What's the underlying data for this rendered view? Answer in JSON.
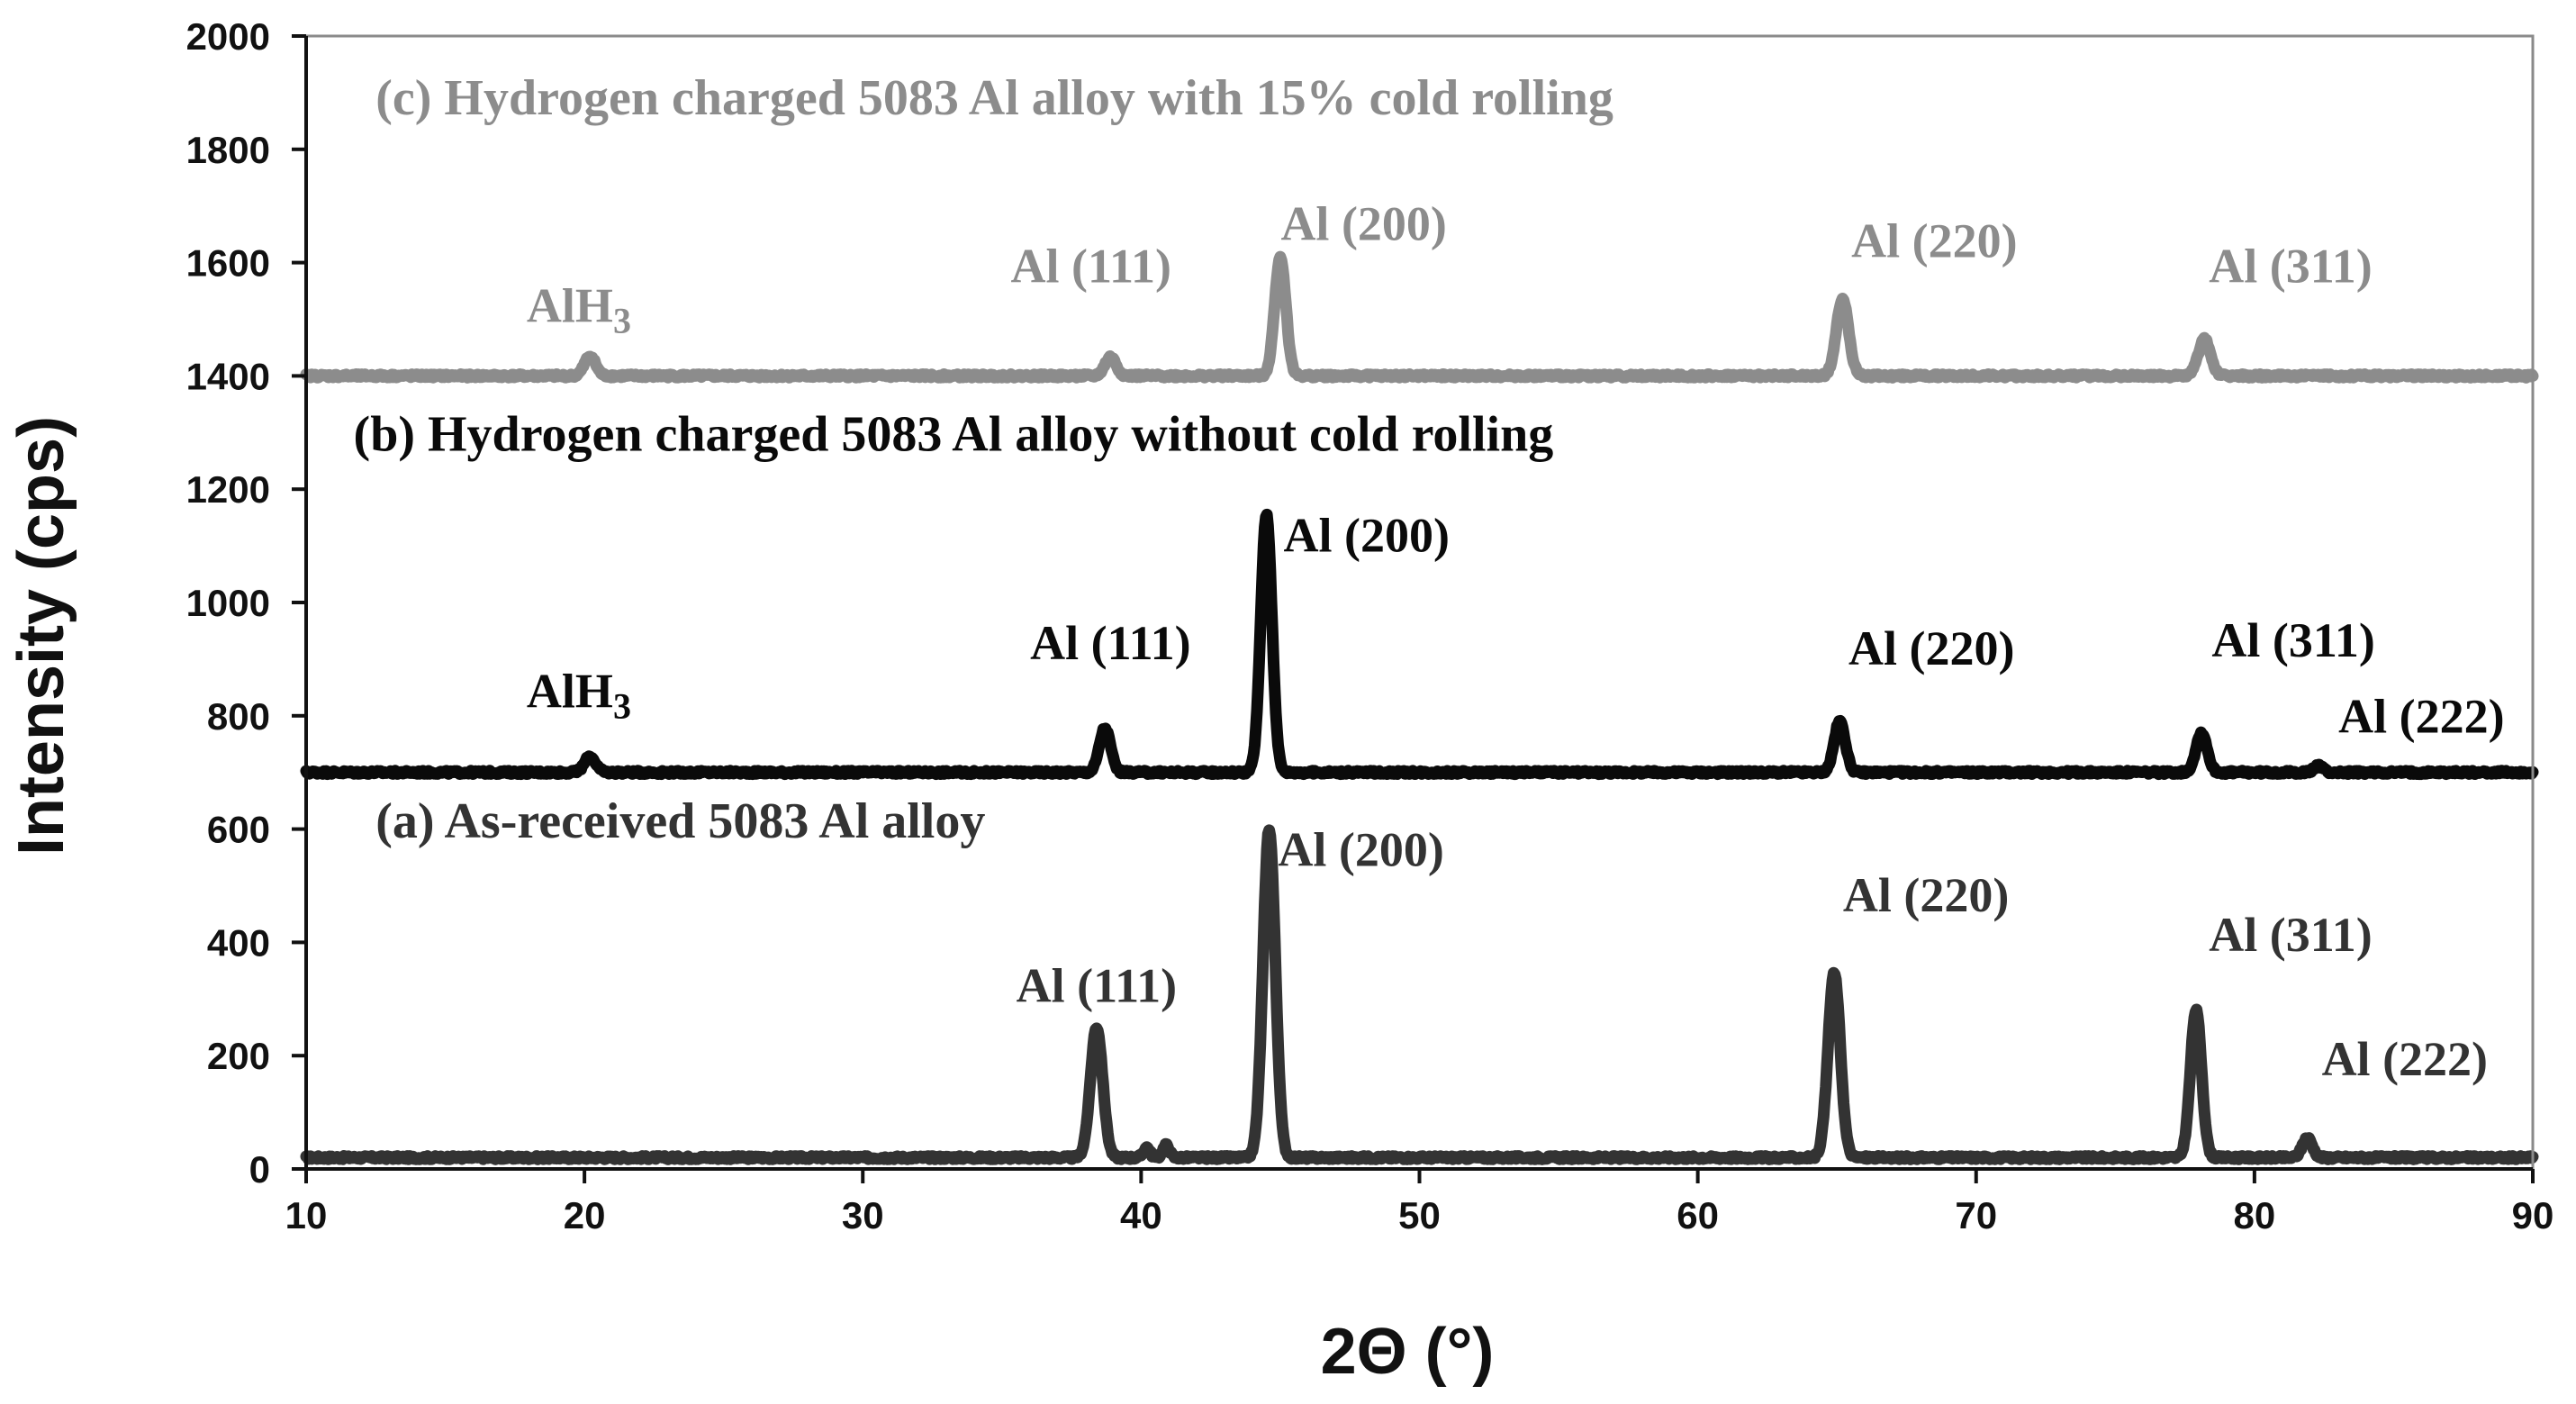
{
  "chart_data": {
    "type": "line",
    "xlabel": "2Θ (°)",
    "ylabel": "Intensity (cps)",
    "xlim": [
      10,
      90
    ],
    "ylim": [
      0,
      2000
    ],
    "x_ticks": [
      10,
      20,
      30,
      40,
      50,
      60,
      70,
      80,
      90
    ],
    "y_ticks": [
      0,
      200,
      400,
      600,
      800,
      1000,
      1200,
      1400,
      1600,
      1800,
      2000
    ],
    "grid": false,
    "series": [
      {
        "name": "(a) As-received 5083 Al alloy",
        "color": "#333333",
        "baseline": 20,
        "peaks": [
          {
            "x": 38.4,
            "y": 250,
            "width": 0.22
          },
          {
            "x": 40.2,
            "y": 38,
            "width": 0.12
          },
          {
            "x": 40.9,
            "y": 42,
            "width": 0.12
          },
          {
            "x": 44.6,
            "y": 600,
            "width": 0.22
          },
          {
            "x": 64.9,
            "y": 345,
            "width": 0.22
          },
          {
            "x": 77.9,
            "y": 280,
            "width": 0.2
          },
          {
            "x": 81.9,
            "y": 55,
            "width": 0.18
          }
        ],
        "peak_labels": [
          {
            "text": "Al (111)",
            "x": 38.4,
            "y": 295
          },
          {
            "text": "Al (200)",
            "x": 47.9,
            "y": 535
          },
          {
            "text": "Al (220)",
            "x": 68.2,
            "y": 455
          },
          {
            "text": "Al (311)",
            "x": 81.3,
            "y": 385
          },
          {
            "text": "Al (222)",
            "x": 85.4,
            "y": 165
          }
        ]
      },
      {
        "name": "(b) Hydrogen charged 5083 Al alloy without cold rolling",
        "color": "#0a0a0a",
        "baseline": 700,
        "peaks": [
          {
            "x": 20.2,
            "y": 728,
            "width": 0.2
          },
          {
            "x": 38.7,
            "y": 778,
            "width": 0.2
          },
          {
            "x": 44.5,
            "y": 1155,
            "width": 0.2
          },
          {
            "x": 65.1,
            "y": 790,
            "width": 0.2
          },
          {
            "x": 78.1,
            "y": 770,
            "width": 0.2
          },
          {
            "x": 82.3,
            "y": 712,
            "width": 0.16
          }
        ],
        "peak_labels": [
          {
            "text": "AlH",
            "sub": "3",
            "x": 19.8,
            "y": 815
          },
          {
            "text": "Al (111)",
            "x": 38.9,
            "y": 900
          },
          {
            "text": "Al (200)",
            "x": 48.1,
            "y": 1090
          },
          {
            "text": "Al (220)",
            "x": 68.4,
            "y": 890
          },
          {
            "text": "Al (311)",
            "x": 81.4,
            "y": 905
          },
          {
            "text": "Al (222)",
            "x": 86.0,
            "y": 770
          }
        ]
      },
      {
        "name": "(c) Hydrogen charged 5083 Al alloy with 15% cold rolling",
        "color": "#8c8c8c",
        "baseline": 1400,
        "peaks": [
          {
            "x": 20.2,
            "y": 1435,
            "width": 0.2
          },
          {
            "x": 38.9,
            "y": 1433,
            "width": 0.2
          },
          {
            "x": 45.0,
            "y": 1610,
            "width": 0.2
          },
          {
            "x": 65.2,
            "y": 1535,
            "width": 0.22
          },
          {
            "x": 78.2,
            "y": 1465,
            "width": 0.22
          }
        ],
        "peak_labels": [
          {
            "text": "AlH",
            "sub": "3",
            "x": 19.8,
            "y": 1495
          },
          {
            "text": "Al (111)",
            "x": 38.2,
            "y": 1565
          },
          {
            "text": "Al (200)",
            "x": 48.0,
            "y": 1640
          },
          {
            "text": "Al (220)",
            "x": 68.5,
            "y": 1610
          },
          {
            "text": "Al (311)",
            "x": 81.3,
            "y": 1565
          }
        ]
      }
    ]
  }
}
